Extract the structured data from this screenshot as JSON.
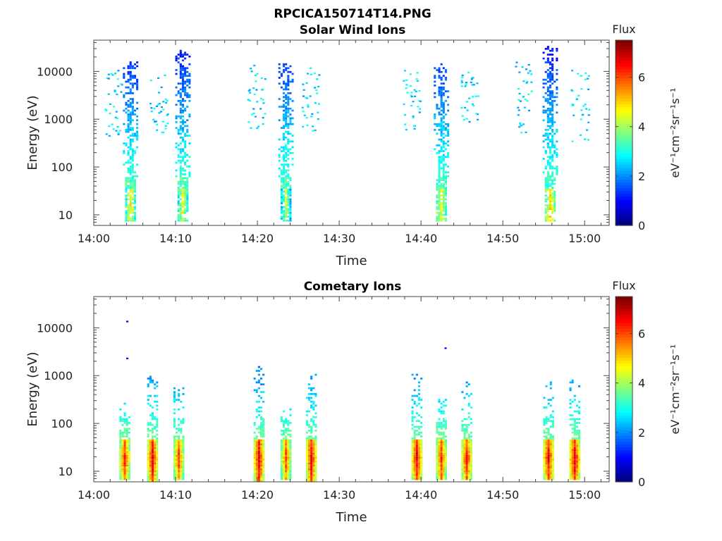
{
  "figure_title": "RPCICA150714T14.PNG",
  "chart_data": [
    {
      "type": "heatmap",
      "title": "Solar Wind Ions",
      "xlabel": "Time",
      "ylabel": "Energy (eV)",
      "y_scale": "log",
      "xlim": [
        "14:00",
        "15:03"
      ],
      "ylim": [
        6,
        45000
      ],
      "x_ticks": [
        "14:00",
        "14:10",
        "14:20",
        "14:30",
        "14:40",
        "14:50",
        "15:00"
      ],
      "y_ticks": [
        "10",
        "100",
        "1000",
        "10000"
      ],
      "grid": false,
      "colorbar": {
        "label": "Flux",
        "units": "eV⁻¹cm⁻²sr⁻¹s⁻¹",
        "range": [
          0,
          7.5
        ],
        "ticks": [
          "0",
          "2",
          "4",
          "6"
        ],
        "colormap": "jet"
      },
      "bursts": [
        {
          "time": "14:04.5",
          "flux_peak": 5.2,
          "low_band_energy": [
            10,
            60
          ],
          "energy_max": 15000
        },
        {
          "time": "14:10.9",
          "flux_peak": 5.0,
          "low_band_energy": [
            10,
            60
          ],
          "energy_max": 26000
        },
        {
          "time": "14:23.5",
          "flux_peak": 4.6,
          "low_band_energy": [
            10,
            60
          ],
          "energy_max": 14000
        },
        {
          "time": "14:42.5",
          "flux_peak": 5.3,
          "low_band_energy": [
            10,
            60
          ],
          "energy_max": 14000
        },
        {
          "time": "14:55.8",
          "flux_peak": 5.6,
          "low_band_energy": [
            10,
            60
          ],
          "energy_max": 34000
        }
      ],
      "side_clusters": [
        {
          "time": "14:02.5",
          "energy": [
            300,
            10000
          ]
        },
        {
          "time": "14:08",
          "energy": [
            500,
            8000
          ]
        },
        {
          "time": "14:20",
          "energy": [
            500,
            15000
          ]
        },
        {
          "time": "14:26.5",
          "energy": [
            500,
            12000
          ]
        },
        {
          "time": "14:39",
          "energy": [
            500,
            10000
          ]
        },
        {
          "time": "14:46",
          "energy": [
            800,
            10000
          ]
        },
        {
          "time": "14:52.5",
          "energy": [
            500,
            15000
          ]
        },
        {
          "time": "14:59.5",
          "energy": [
            300,
            10000
          ]
        }
      ]
    },
    {
      "type": "heatmap",
      "title": "Cometary Ions",
      "xlabel": "Time",
      "ylabel": "Energy (eV)",
      "y_scale": "log",
      "xlim": [
        "14:00",
        "15:03"
      ],
      "ylim": [
        6,
        45000
      ],
      "x_ticks": [
        "14:00",
        "14:10",
        "14:20",
        "14:30",
        "14:40",
        "14:50",
        "15:00"
      ],
      "y_ticks": [
        "10",
        "100",
        "1000",
        "10000"
      ],
      "grid": false,
      "colorbar": {
        "label": "Flux",
        "units": "eV⁻¹cm⁻²sr⁻¹s⁻¹",
        "range": [
          0,
          7.5
        ],
        "ticks": [
          "0",
          "2",
          "4",
          "6"
        ],
        "colormap": "jet"
      },
      "bursts": [
        {
          "time": "14:03.8",
          "flux_peak": 6.8,
          "energy_range": [
            8,
            250
          ]
        },
        {
          "time": "14:07.2",
          "flux_peak": 7.2,
          "energy_range": [
            6,
            1200
          ]
        },
        {
          "time": "14:10.4",
          "flux_peak": 6.6,
          "energy_range": [
            8,
            600
          ]
        },
        {
          "time": "14:20.2",
          "flux_peak": 7.3,
          "energy_range": [
            6,
            1500
          ]
        },
        {
          "time": "14:23.5",
          "flux_peak": 6.5,
          "energy_range": [
            8,
            200
          ]
        },
        {
          "time": "14:26.6",
          "flux_peak": 7.2,
          "energy_range": [
            6,
            1000
          ]
        },
        {
          "time": "14:39.5",
          "flux_peak": 7.2,
          "energy_range": [
            8,
            1000
          ]
        },
        {
          "time": "14:42.5",
          "flux_peak": 6.8,
          "energy_range": [
            8,
            300
          ]
        },
        {
          "time": "14:45.6",
          "flux_peak": 7.0,
          "energy_range": [
            8,
            700
          ]
        },
        {
          "time": "14:55.6",
          "flux_peak": 7.2,
          "energy_range": [
            8,
            700
          ]
        },
        {
          "time": "14:58.8",
          "flux_peak": 7.3,
          "energy_range": [
            8,
            800
          ]
        }
      ],
      "outliers": [
        {
          "time": "14:04.1",
          "energy": 13000
        },
        {
          "time": "14:04.1",
          "energy": 2200
        },
        {
          "time": "14:43",
          "energy": 3600
        }
      ]
    }
  ]
}
